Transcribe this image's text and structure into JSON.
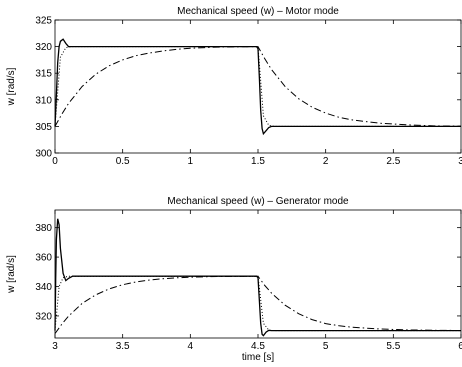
{
  "chart_data": [
    {
      "type": "line",
      "title": "Mechanical speed (w) – Motor mode",
      "xlabel": "",
      "ylabel": "w [rad/s]",
      "xlim": [
        0,
        3
      ],
      "ylim": [
        300,
        325
      ],
      "xticks": [
        0,
        0.5,
        1,
        1.5,
        2,
        2.5,
        3
      ],
      "xtick_labels": [
        "0",
        "0.5",
        "1",
        "1.5",
        "2",
        "2.5",
        "3"
      ],
      "yticks": [
        300,
        305,
        310,
        315,
        320,
        325
      ],
      "ytick_labels": [
        "300",
        "305",
        "310",
        "315",
        "320",
        "325"
      ],
      "grid": false,
      "series": [
        {
          "style": "solid",
          "x": [
            0,
            0.01,
            0.02,
            0.03,
            0.04,
            0.06,
            0.08,
            0.1,
            0.13,
            0.2,
            1.49,
            1.5,
            1.51,
            1.52,
            1.53,
            1.54,
            1.56,
            1.58,
            1.6,
            1.63,
            1.7,
            3
          ],
          "y": [
            305,
            311,
            317,
            320,
            321,
            321.4,
            320.6,
            320,
            320,
            320,
            320,
            319.6,
            314,
            308,
            304.6,
            303.6,
            304.2,
            304.8,
            305,
            305,
            305,
            305
          ]
        },
        {
          "style": "dotted",
          "x": [
            0,
            0.04,
            0.08,
            0.12,
            0.2,
            1.5,
            1.54,
            1.58,
            1.62,
            1.7,
            3
          ],
          "y": [
            305,
            318,
            319.8,
            320,
            320,
            320,
            307,
            305.2,
            305,
            305,
            305
          ]
        },
        {
          "style": "dashdot",
          "x": [
            0,
            0.05,
            0.1,
            0.2,
            0.3,
            0.4,
            0.5,
            0.6,
            0.7,
            0.8,
            0.9,
            1.0,
            1.2,
            1.5,
            1.55,
            1.6,
            1.7,
            1.8,
            1.9,
            2.0,
            2.1,
            2.2,
            2.4,
            2.6,
            2.8,
            3.0
          ],
          "y": [
            305,
            307.3,
            309.3,
            312.5,
            314.8,
            316.4,
            317.5,
            318.3,
            318.8,
            319.2,
            319.5,
            319.7,
            319.9,
            320,
            317.7,
            315.7,
            312.5,
            310.2,
            308.6,
            307.5,
            306.7,
            306.2,
            305.6,
            305.3,
            305.1,
            305.05
          ]
        }
      ]
    },
    {
      "type": "line",
      "title": "Mechanical speed (w) – Generator mode",
      "xlabel": "time [s]",
      "ylabel": "w [rad/s]",
      "xlim": [
        3,
        6
      ],
      "ylim": [
        305,
        392
      ],
      "xticks": [
        3,
        3.5,
        4,
        4.5,
        5,
        5.5,
        6
      ],
      "xtick_labels": [
        "3",
        "3.5",
        "4",
        "4.5",
        "5",
        "5.5",
        "6"
      ],
      "yticks": [
        320,
        340,
        360,
        380
      ],
      "ytick_labels": [
        "320",
        "340",
        "360",
        "380"
      ],
      "grid": false,
      "series": [
        {
          "style": "solid",
          "x": [
            3.0,
            3.005,
            3.01,
            3.02,
            3.03,
            3.04,
            3.06,
            3.08,
            3.1,
            3.13,
            3.2,
            4.49,
            4.5,
            4.51,
            4.52,
            4.53,
            4.54,
            4.56,
            4.58,
            4.6,
            4.65,
            6.0
          ],
          "y": [
            310,
            345,
            372,
            386,
            382,
            366,
            349,
            344,
            345.5,
            347,
            347,
            347,
            346,
            330,
            315,
            307.5,
            306.6,
            309,
            310.2,
            310,
            310,
            310
          ]
        },
        {
          "style": "dotted",
          "x": [
            3.0,
            3.03,
            3.06,
            3.1,
            3.2,
            4.5,
            4.54,
            4.58,
            4.62,
            4.7,
            6.0
          ],
          "y": [
            310,
            340,
            346,
            347,
            347,
            347,
            315,
            310.3,
            310,
            310,
            310
          ]
        },
        {
          "style": "dashdot",
          "x": [
            3.0,
            3.05,
            3.1,
            3.2,
            3.3,
            3.4,
            3.5,
            3.6,
            3.7,
            3.8,
            3.9,
            4.0,
            4.2,
            4.5,
            4.55,
            4.6,
            4.7,
            4.8,
            4.9,
            5.0,
            5.1,
            5.2,
            5.4,
            5.6,
            5.8,
            6.0
          ],
          "y": [
            308,
            314.4,
            319.8,
            328.5,
            334.3,
            338.4,
            341.2,
            343.1,
            344.4,
            345.3,
            345.9,
            346.3,
            346.8,
            347,
            340.7,
            335.5,
            327.3,
            321.5,
            317.5,
            314.8,
            313.3,
            312.3,
            311.1,
            310.5,
            310.2,
            310.1
          ]
        }
      ]
    }
  ]
}
